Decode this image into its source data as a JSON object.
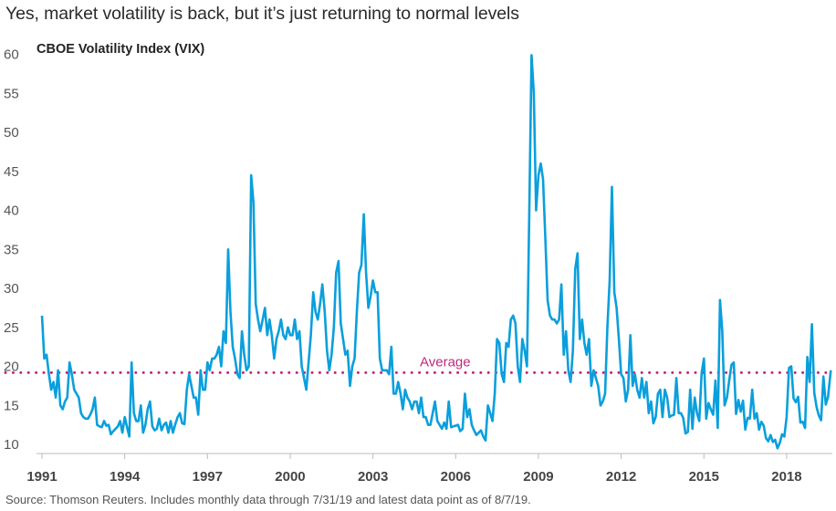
{
  "chart_data": {
    "type": "line",
    "title": "Yes, market volatility is back, but it’s just returning to normal levels",
    "subtitle": "CBOE Volatility Index (VIX)",
    "source": "Source: Thomson Reuters. Includes monthly data through 7/31/19 and latest data point as of 8/7/19.",
    "xlabel": "",
    "ylabel": "",
    "ylim": [
      10,
      60
    ],
    "yticks": [
      10,
      15,
      20,
      25,
      30,
      35,
      40,
      45,
      50,
      55,
      60
    ],
    "xticks": [
      "1991",
      "1994",
      "1997",
      "2000",
      "2003",
      "2006",
      "2009",
      "2012",
      "2015",
      "2018"
    ],
    "xlim": [
      1991,
      2019.6
    ],
    "start_year": 1991,
    "interval": "monthly",
    "average": {
      "label": "Average",
      "value": 19.2,
      "color": "#c0287a"
    },
    "line_color": "#0a9fdc",
    "series": [
      {
        "name": "VIX",
        "values": [
          26.5,
          21,
          21.5,
          19,
          17,
          18,
          16,
          19.5,
          15,
          14.5,
          15.5,
          16,
          20.5,
          19,
          17,
          16.5,
          16,
          14,
          13.5,
          13.3,
          13.3,
          13.8,
          14.5,
          16,
          12.5,
          12.3,
          12.2,
          13,
          12.4,
          12.5,
          11.3,
          11.7,
          12,
          12.3,
          13,
          11.5,
          13.5,
          12.2,
          11,
          20.5,
          14,
          13,
          13,
          15,
          11.5,
          12.5,
          14.5,
          15.5,
          12.3,
          11.8,
          12,
          13.3,
          11.8,
          12.5,
          12.8,
          11.5,
          13,
          11.5,
          12.6,
          13.5,
          14,
          12.7,
          12.6,
          17,
          19,
          17.5,
          16,
          16,
          13.8,
          19.5,
          17,
          17,
          20.5,
          19.5,
          21,
          21,
          21.5,
          22.5,
          20,
          24.5,
          23,
          35,
          27,
          22.5,
          21,
          19,
          18.5,
          24.5,
          21.5,
          19.5,
          20,
          44.5,
          41,
          28,
          26,
          24.5,
          26,
          27.5,
          24,
          26,
          24,
          21,
          23.5,
          24.5,
          26,
          24,
          23.5,
          25,
          24,
          24,
          26,
          23.5,
          24.5,
          20,
          18.5,
          17,
          20.5,
          24,
          29.5,
          27,
          26,
          28,
          30.5,
          27,
          22,
          19.5,
          21.5,
          25,
          32,
          33.5,
          25.5,
          23.5,
          21.5,
          22,
          17.5,
          20,
          21,
          27,
          32,
          33,
          39.5,
          32,
          27.5,
          29,
          31,
          29.5,
          29.5,
          21,
          19.5,
          19.5,
          19.5,
          19,
          22.5,
          16.5,
          16.5,
          18,
          16.5,
          14.5,
          17,
          16,
          15.5,
          14.5,
          15.5,
          15.5,
          14,
          16,
          13.5,
          13.5,
          12.5,
          12.5,
          14,
          15.5,
          13,
          12.5,
          12,
          12.8,
          12,
          15.5,
          12.2,
          12.3,
          12.4,
          12.5,
          11.7,
          12,
          16.5,
          13.5,
          14.5,
          12.5,
          11.8,
          11.2,
          11.5,
          11.8,
          11,
          10.5,
          15,
          14,
          13,
          16.5,
          23.5,
          23,
          19,
          18,
          23,
          22.5,
          26,
          26.5,
          25.5,
          20,
          18,
          23.5,
          22,
          20,
          39.5,
          59.9,
          55,
          40,
          44.5,
          46,
          44,
          36.5,
          28.5,
          26.5,
          26,
          26,
          25.5,
          26,
          30.5,
          21.5,
          24.5,
          19.5,
          18,
          22,
          32.5,
          34.5,
          23.5,
          26,
          23,
          21.5,
          23.5,
          17.5,
          19.5,
          18.5,
          17.5,
          15,
          15.5,
          16.5,
          25,
          31,
          43,
          29.5,
          27.5,
          23.5,
          19,
          18.5,
          15.5,
          17,
          24,
          17.5,
          19,
          17,
          16,
          18.5,
          16,
          18,
          14,
          15.5,
          12.7,
          13.5,
          16.5,
          17,
          13.5,
          17,
          16,
          13.5,
          13.7,
          13.8,
          18.5,
          14,
          14,
          13.4,
          11.4,
          11.6,
          17,
          12,
          16,
          14,
          13,
          19.2,
          21,
          13.3,
          15.3,
          14.5,
          13.8,
          18.2,
          12.1,
          28.5,
          24.5,
          15,
          16,
          18.2,
          20.2,
          20.5,
          13.9,
          15.7,
          14.2,
          15.6,
          11.9,
          13.4,
          13.3,
          17,
          13.3,
          14,
          11.9,
          12.9,
          12.4,
          10.8,
          10.4,
          11.2,
          10.3,
          10.6,
          9.5,
          10.2,
          11.3,
          11,
          13.5,
          19.8,
          20,
          15.9,
          15.4,
          16.1,
          12.8,
          12.9,
          12.1,
          21.2,
          18,
          25.4,
          16.6,
          14.8,
          13.7,
          13.1,
          18.7,
          15.1,
          16.1,
          19.5
        ]
      }
    ]
  }
}
